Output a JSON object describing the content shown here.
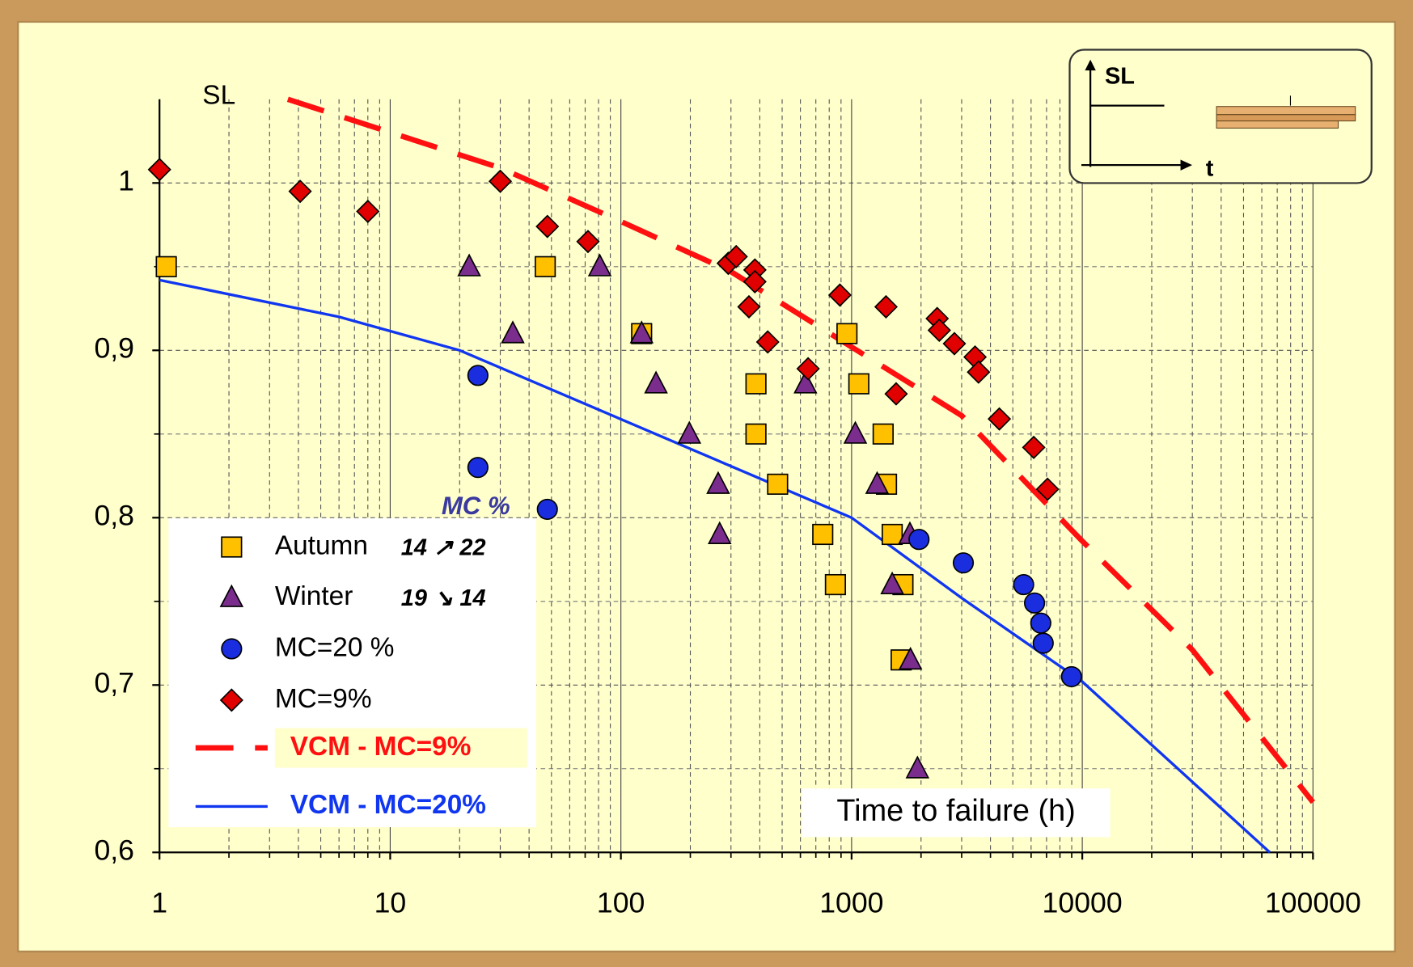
{
  "chart_data": {
    "type": "scatter",
    "y_label": "SL",
    "x_label": "Time to failure (h)",
    "log_x": true,
    "grid": true,
    "xlim": [
      1,
      100000
    ],
    "ylim": [
      0.6,
      1.05
    ],
    "xticks": [
      1,
      10,
      100,
      1000,
      10000,
      100000
    ],
    "yticks": [
      {
        "value": 0.6,
        "label": "0,6"
      },
      {
        "value": 0.7,
        "label": "0,7"
      },
      {
        "value": 0.8,
        "label": "0,8"
      },
      {
        "value": 0.9,
        "label": "0,9"
      },
      {
        "value": 1,
        "label": "1"
      }
    ],
    "legend_position": "lower left",
    "legend_title": "MC %",
    "series": [
      {
        "name": "Autumn",
        "annotation": "14 ↗ 22",
        "mode": "markers",
        "marker": "square",
        "color": "#ffc000",
        "x": [
          1.07,
          47,
          123,
          385,
          385,
          478,
          955,
          1075,
          1370,
          1417,
          1500,
          750,
          851,
          1670,
          1640
        ],
        "values": [
          0.95,
          0.95,
          0.91,
          0.88,
          0.85,
          0.82,
          0.91,
          0.88,
          0.85,
          0.82,
          0.79,
          0.79,
          0.76,
          0.76,
          0.715
        ]
      },
      {
        "name": "Winter",
        "annotation": "19 ↘ 14",
        "mode": "markers",
        "marker": "triangle",
        "color": "#7a2d8c",
        "x": [
          22,
          81,
          34,
          123,
          142,
          198,
          264,
          268,
          631,
          1038,
          1290,
          1790,
          1500,
          1800,
          1930
        ],
        "values": [
          0.95,
          0.95,
          0.91,
          0.91,
          0.88,
          0.85,
          0.82,
          0.79,
          0.88,
          0.85,
          0.82,
          0.79,
          0.76,
          0.715,
          0.65
        ]
      },
      {
        "name": "MC=20 %",
        "mode": "markers",
        "marker": "circle",
        "color": "#1a2ee0",
        "x": [
          24,
          24,
          48,
          1960,
          3050,
          5570,
          6210,
          6610,
          6770,
          8980
        ],
        "values": [
          0.885,
          0.83,
          0.805,
          0.787,
          0.773,
          0.76,
          0.749,
          0.737,
          0.725,
          0.705
        ]
      },
      {
        "name": "MC=9%",
        "mode": "markers",
        "marker": "diamond",
        "color": "#e00000",
        "x": [
          1,
          4.07,
          8,
          30,
          48,
          72,
          292,
          316,
          381,
          381,
          359,
          433,
          648,
          890,
          1410,
          1560,
          2350,
          2400,
          2790,
          3430,
          3550,
          4370,
          6160,
          7070
        ],
        "values": [
          1.008,
          0.995,
          0.983,
          1.001,
          0.974,
          0.965,
          0.952,
          0.956,
          0.948,
          0.941,
          0.926,
          0.905,
          0.889,
          0.933,
          0.926,
          0.874,
          0.919,
          0.912,
          0.904,
          0.896,
          0.887,
          0.859,
          0.842,
          0.817
        ]
      },
      {
        "name": "VCM - MC=9%",
        "mode": "line",
        "dashed": true,
        "color": "#ff1010",
        "x": [
          3.6,
          30,
          100,
          300,
          1000,
          3000,
          10000,
          30000,
          100000
        ],
        "values": [
          1.05,
          1.009,
          0.977,
          0.947,
          0.902,
          0.861,
          0.786,
          0.721,
          0.63
        ]
      },
      {
        "name": "VCM - MC=20%",
        "mode": "line",
        "dashed": false,
        "color": "#1036f0",
        "x": [
          1,
          6,
          20,
          1000,
          3000,
          10000,
          65000
        ],
        "values": [
          0.942,
          0.92,
          0.9,
          0.8,
          0.752,
          0.702,
          0.6
        ]
      }
    ],
    "inset": {
      "y_label": "SL",
      "x_label": "t"
    }
  }
}
